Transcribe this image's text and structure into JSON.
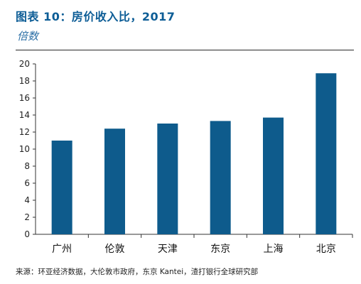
{
  "title": "图表 10：房价收入比，2017",
  "subtitle": "倍数",
  "source": "来源：环亚经济数据，大伦敦市政府，东京 Kantei，渣打银行全球研究部",
  "colors": {
    "bar": "#0e5b8c",
    "title": "#0d5d96",
    "axis": "#333333"
  },
  "chart_data": {
    "type": "bar",
    "categories": [
      "广州",
      "伦敦",
      "天津",
      "东京",
      "上海",
      "北京"
    ],
    "values": [
      11.0,
      12.4,
      13.0,
      13.3,
      13.7,
      18.9
    ],
    "ylim": [
      0,
      20
    ],
    "yticks": [
      0,
      2,
      4,
      6,
      8,
      10,
      12,
      14,
      16,
      18,
      20
    ],
    "xlabel": "",
    "ylabel": "倍数",
    "grid": false
  }
}
